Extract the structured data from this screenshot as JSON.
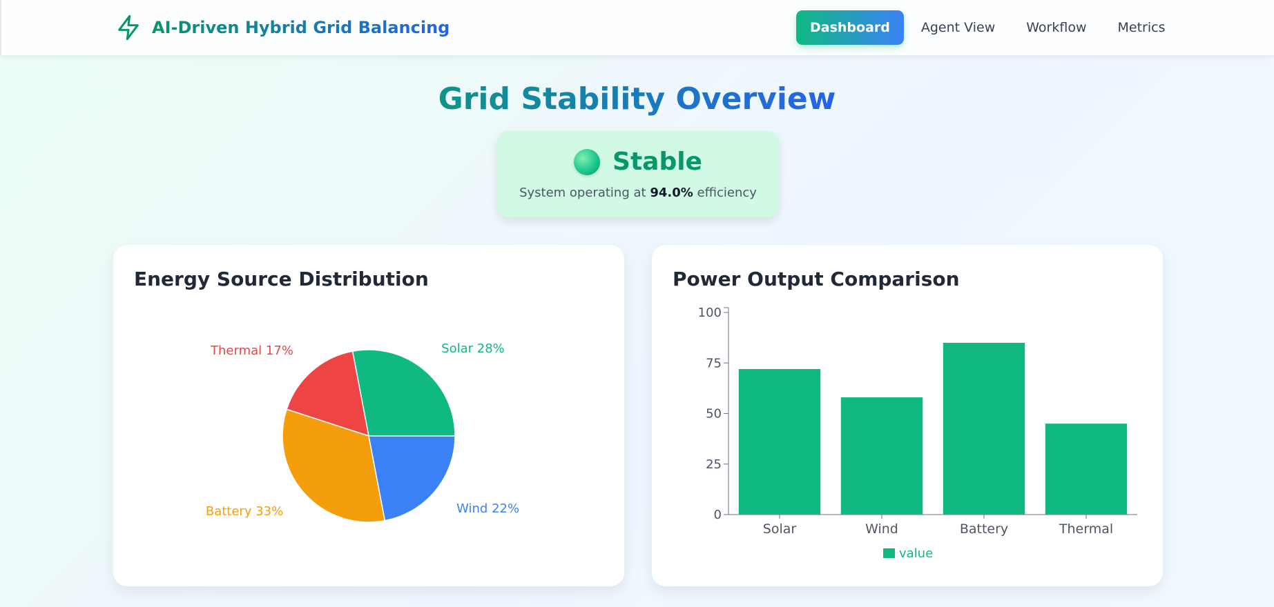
{
  "header": {
    "app_title": "AI-Driven Hybrid Grid Balancing",
    "nav": [
      {
        "label": "Dashboard",
        "active": true
      },
      {
        "label": "Agent View",
        "active": false
      },
      {
        "label": "Workflow",
        "active": false
      },
      {
        "label": "Metrics",
        "active": false
      }
    ]
  },
  "main": {
    "title": "Grid Stability Overview",
    "status": {
      "label": "Stable",
      "text_prefix": "System operating at",
      "efficiency": "94.0%",
      "text_suffix": "efficiency"
    }
  },
  "colors": {
    "solar": "#10b981",
    "wind": "#3b82f6",
    "battery": "#f59e0b",
    "thermal": "#ef4444",
    "bar": "#10b981"
  },
  "chart_data": [
    {
      "type": "pie",
      "title": "Energy Source Distribution",
      "categories": [
        "Solar",
        "Thermal",
        "Battery",
        "Wind"
      ],
      "values": [
        28,
        17,
        33,
        22
      ],
      "labels": [
        "Solar 28%",
        "Thermal 17%",
        "Battery 33%",
        "Wind 22%"
      ]
    },
    {
      "type": "bar",
      "title": "Power Output Comparison",
      "categories": [
        "Solar",
        "Wind",
        "Battery",
        "Thermal"
      ],
      "series": [
        {
          "name": "value",
          "values": [
            72,
            58,
            85,
            45
          ]
        }
      ],
      "yticks": [
        0,
        25,
        50,
        75,
        100
      ],
      "ylim": [
        0,
        100
      ],
      "legend": "bottom"
    }
  ]
}
